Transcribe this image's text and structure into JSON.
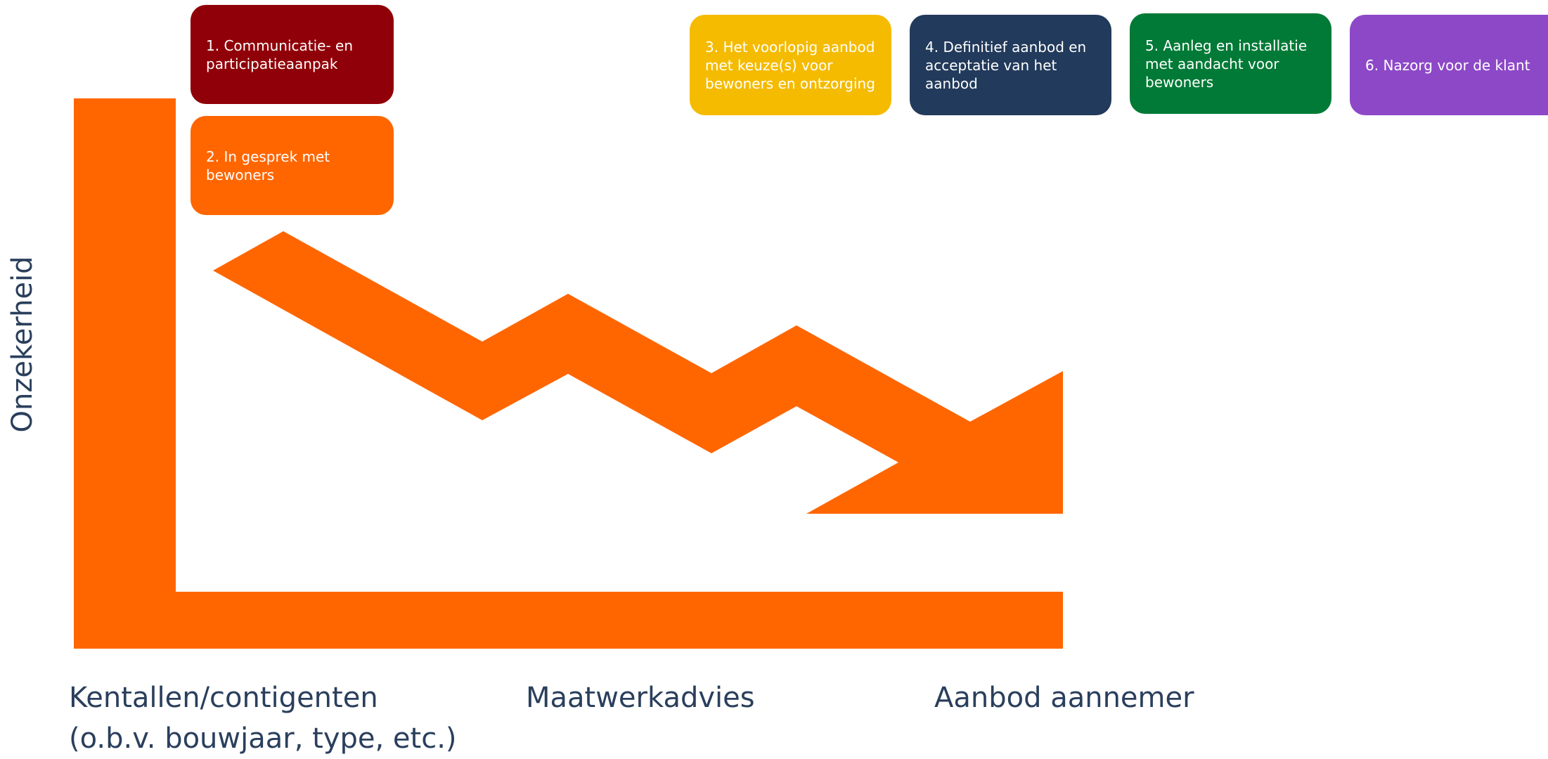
{
  "colors": {
    "arrow": "#ff6600",
    "text_dark": "#2a3f5c"
  },
  "steps": [
    {
      "label": "1. Communicatie- en participatieaanpak",
      "color": "#900008"
    },
    {
      "label": "2. In gesprek met bewoners",
      "color": "#ff6600"
    },
    {
      "label": "3. Het voorlopig aanbod met keuze(s) voor bewoners en ontzorging",
      "color": "#f5bb00"
    },
    {
      "label": "4. Definitief aanbod en acceptatie van het aanbod",
      "color": "#223a5b"
    },
    {
      "label": "5. Aanleg en installatie met aandacht voor bewoners",
      "color": "#007a36"
    },
    {
      "label": "6. Nazorg voor de klant",
      "color": "#8d48c8"
    }
  ],
  "y_axis": {
    "label": "Onzekerheid"
  },
  "x_axis": {
    "labels": [
      {
        "line1": "Kentallen/contigenten",
        "line2": "(o.b.v. bouwjaar, type, etc.)"
      },
      {
        "line1": "Maatwerkadvies",
        "line2": ""
      },
      {
        "line1": "Aanbod aannemer",
        "line2": ""
      }
    ]
  }
}
